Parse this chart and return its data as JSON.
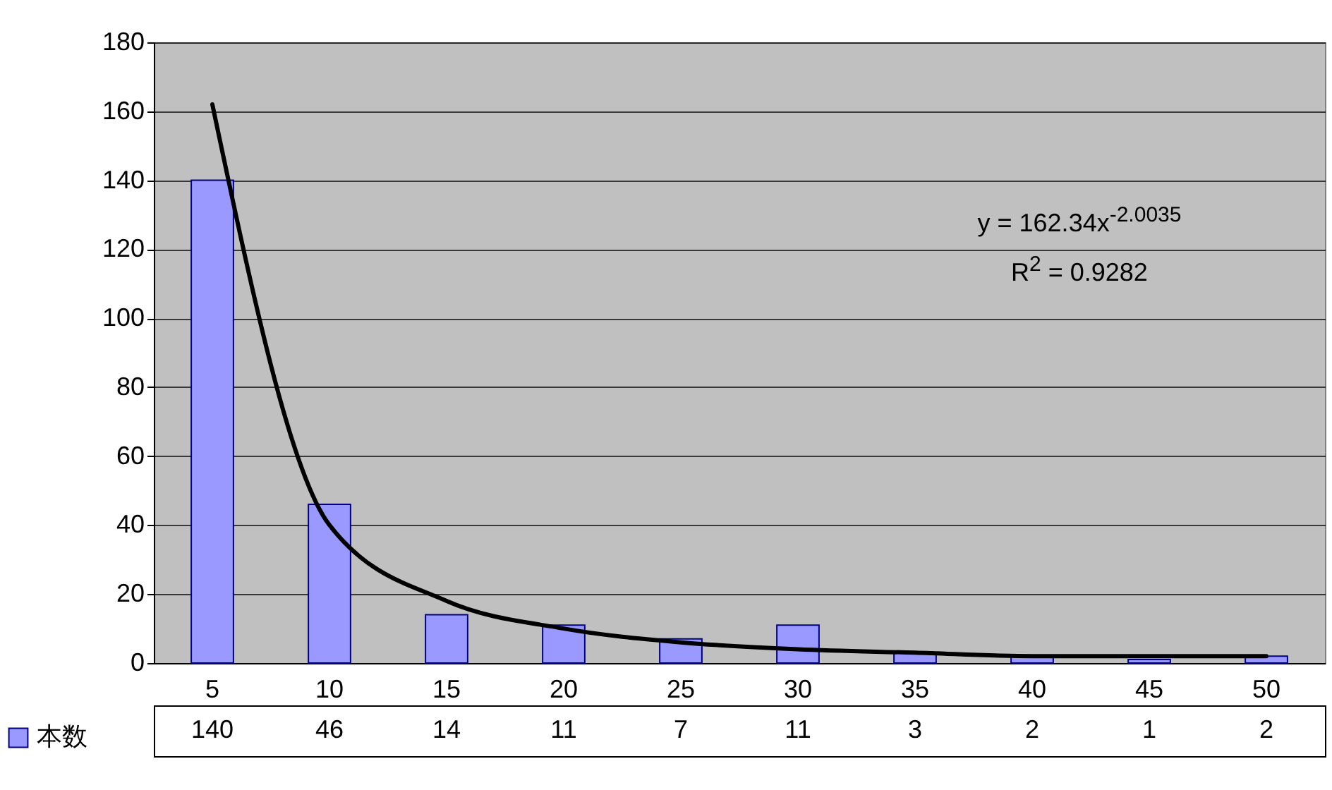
{
  "chart_data": {
    "type": "bar",
    "categories": [
      "5",
      "10",
      "15",
      "20",
      "25",
      "30",
      "35",
      "40",
      "45",
      "50"
    ],
    "series": [
      {
        "name": "本数",
        "color": "#9999ff",
        "values": [
          140,
          46,
          14,
          11,
          7,
          11,
          3,
          2,
          1,
          2
        ],
        "value_labels": [
          "140",
          "46",
          "14",
          "11",
          "7",
          "11",
          "3",
          "2",
          "1",
          "2"
        ]
      },
      {
        "type": "line",
        "color": "#000000",
        "x": [
          "5",
          "10",
          "15",
          "20",
          "25",
          "30",
          "35",
          "40",
          "45",
          "50"
        ],
        "values": [
          162,
          40,
          18,
          10,
          6,
          4,
          3,
          2,
          2,
          2
        ]
      }
    ],
    "ylim": [
      0,
      180
    ],
    "yticks": [
      0,
      20,
      40,
      60,
      80,
      100,
      120,
      140,
      160,
      180
    ],
    "grid": "y",
    "legend": "bottom left",
    "annotations": [
      "y = 162.34x$^{-2.0035}$",
      "R$^{2}$ = 0.9282"
    ]
  }
}
